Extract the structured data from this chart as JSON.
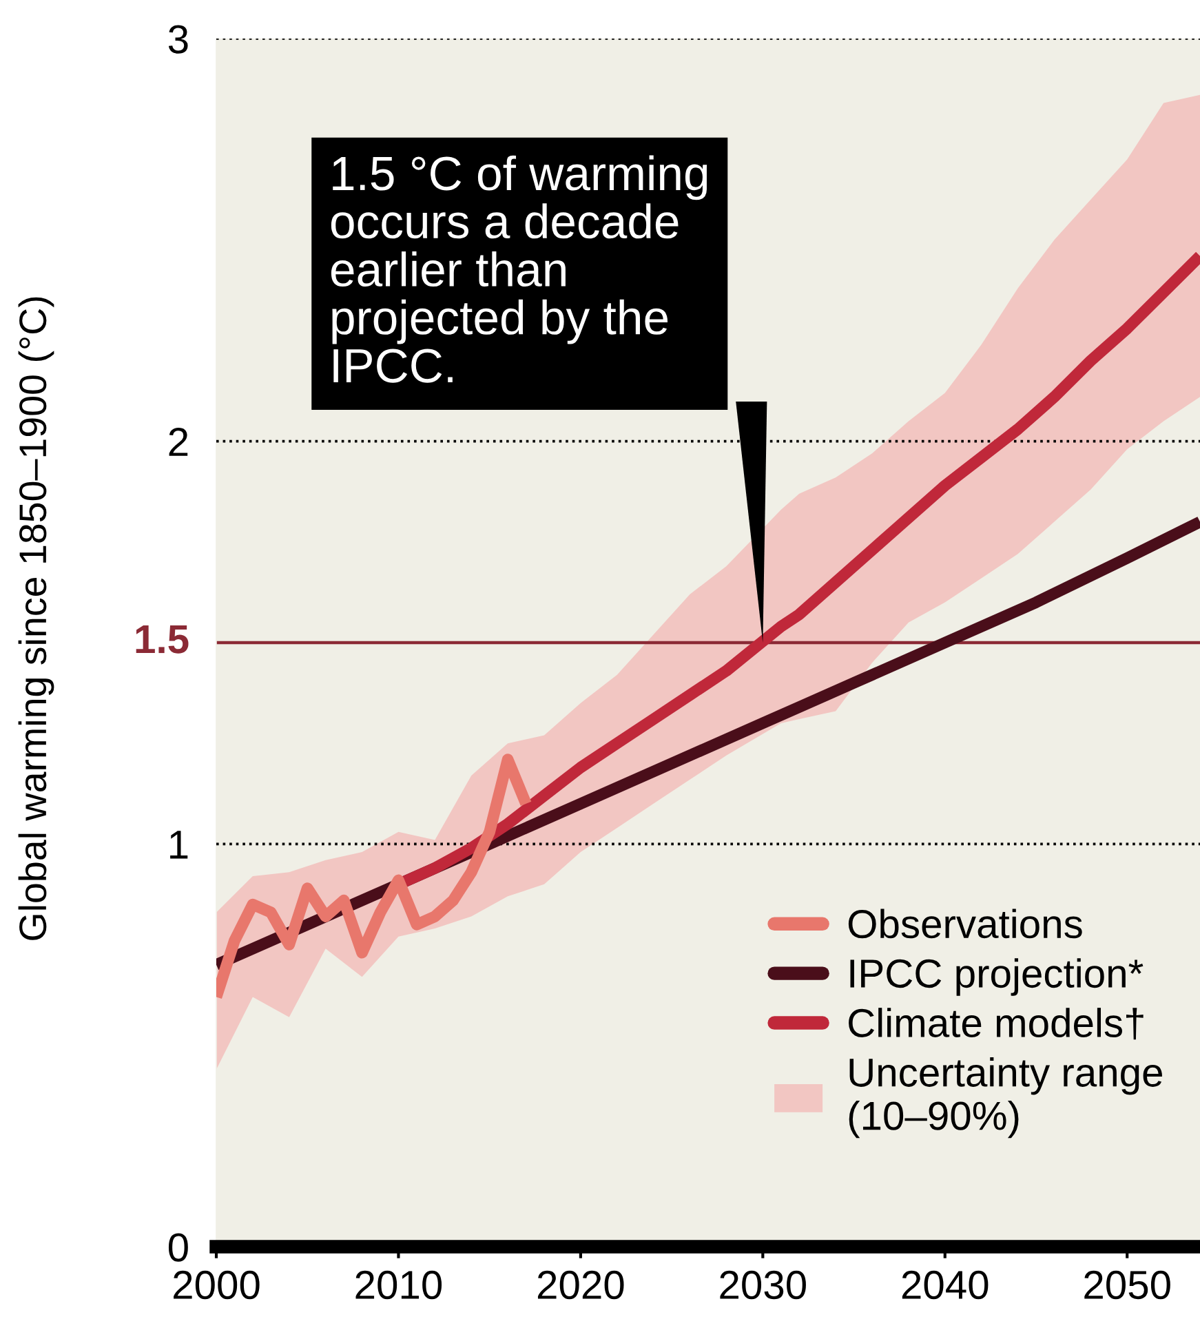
{
  "chart_data": {
    "type": "line",
    "ylabel": "Global warming since 1850–1900 (°C)",
    "xlim": [
      2000,
      2054
    ],
    "xticks": [
      2000,
      2010,
      2020,
      2030,
      2040,
      2050
    ],
    "ylim": [
      0,
      3
    ],
    "yticks": [
      0,
      1,
      2,
      3
    ],
    "grid": "y",
    "legend": "bottom right",
    "line_style": "solid",
    "marker": "none",
    "ref_lines": [
      {
        "axis": "y",
        "value": 1.5,
        "label": "1.5",
        "color": "#8b2a35"
      }
    ],
    "annotations": [
      {
        "text": "1.5 °C of warming\noccurs a decade\nearlier than\nprojected by the\nIPCC.",
        "x": 2030,
        "y": 1.5
      }
    ],
    "series": [
      {
        "name": "Uncertainty range\n(10–90%)",
        "type": "area",
        "color": "#f2c6c2"
      },
      {
        "name": "IPCC projection*",
        "color": "#4a0e1a",
        "x": [
          2000,
          2005,
          2010,
          2015,
          2020,
          2025,
          2030,
          2035,
          2040,
          2045,
          2050,
          2054
        ],
        "values": [
          0.7,
          0.8,
          0.9,
          1.0,
          1.1,
          1.2,
          1.3,
          1.4,
          1.5,
          1.6,
          1.71,
          1.8
        ]
      },
      {
        "name": "Climate models†",
        "color": "#c0283a",
        "x": [
          2000,
          2002,
          2004,
          2006,
          2008,
          2010,
          2012,
          2014,
          2016,
          2018,
          2020,
          2022,
          2024,
          2026,
          2028,
          2031,
          2032,
          2034,
          2036,
          2038,
          2040,
          2042,
          2044,
          2046,
          2048,
          2050,
          2052,
          2054
        ],
        "values": [
          null,
          null,
          null,
          null,
          null,
          0.9,
          0.94,
          0.99,
          1.05,
          1.12,
          1.19,
          1.25,
          1.31,
          1.37,
          1.43,
          1.54,
          1.57,
          1.65,
          1.73,
          1.81,
          1.89,
          1.96,
          2.03,
          2.11,
          2.2,
          2.28,
          2.37,
          2.46
        ],
        "lower": [
          0.44,
          0.62,
          0.57,
          0.74,
          0.67,
          0.77,
          0.79,
          0.82,
          0.87,
          0.9,
          0.98,
          1.04,
          1.1,
          1.16,
          1.22,
          1.3,
          1.31,
          1.33,
          1.45,
          1.55,
          1.6,
          1.66,
          1.72,
          1.8,
          1.88,
          1.98,
          2.05,
          2.11
        ],
        "upper": [
          0.83,
          0.92,
          0.93,
          0.96,
          0.98,
          1.03,
          1.01,
          1.17,
          1.25,
          1.27,
          1.35,
          1.42,
          1.52,
          1.62,
          1.69,
          1.83,
          1.87,
          1.91,
          1.97,
          2.05,
          2.12,
          2.24,
          2.38,
          2.5,
          2.6,
          2.7,
          2.84,
          2.86
        ]
      },
      {
        "name": "Observations",
        "color": "#e8776c",
        "x": [
          2000,
          2001,
          2002,
          2003,
          2004,
          2005,
          2006,
          2007,
          2008,
          2009,
          2010,
          2011,
          2012,
          2013,
          2014,
          2015,
          2016,
          2017
        ],
        "values": [
          0.62,
          0.76,
          0.85,
          0.83,
          0.75,
          0.89,
          0.82,
          0.86,
          0.73,
          0.83,
          0.91,
          0.8,
          0.82,
          0.86,
          0.93,
          1.03,
          1.21,
          1.1
        ]
      }
    ]
  }
}
